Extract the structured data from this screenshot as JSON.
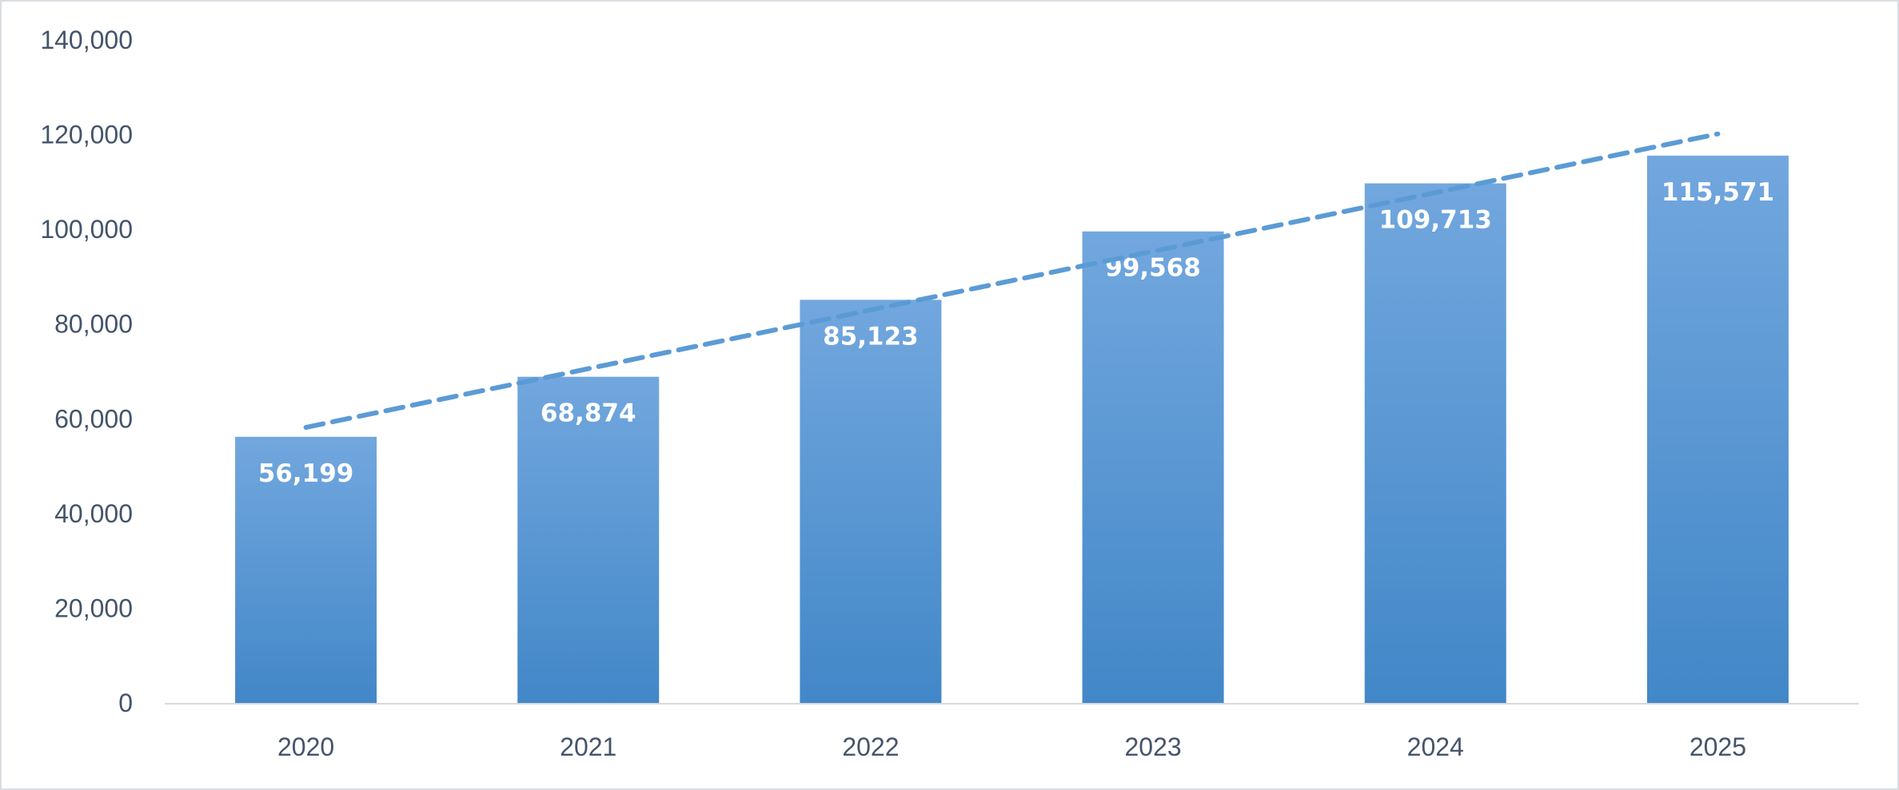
{
  "chart_data": {
    "type": "bar",
    "title": "",
    "xlabel": "",
    "ylabel": "",
    "categories": [
      "2020",
      "2021",
      "2022",
      "2023",
      "2024",
      "2025"
    ],
    "values": [
      56199,
      68874,
      85123,
      99568,
      109713,
      115571
    ],
    "value_labels": [
      "56,199",
      "68,874",
      "85,123",
      "99,568",
      "109,713",
      "115,571"
    ],
    "ylim": [
      0,
      140000
    ],
    "yticks": [
      0,
      20000,
      40000,
      60000,
      80000,
      100000,
      120000,
      140000
    ],
    "ytick_labels": [
      "0",
      "20,000",
      "40,000",
      "60,000",
      "80,000",
      "100,000",
      "120,000",
      "140,000"
    ],
    "grid": false,
    "legend": "none",
    "trendline": {
      "type": "linear",
      "style": "dashed"
    },
    "colors": {
      "bar_top": "#72a7de",
      "bar_bottom": "#4287c8",
      "trendline": "#5b9bd5",
      "axis_text": "#44546a",
      "axis_line": "#d9d9d9"
    }
  }
}
